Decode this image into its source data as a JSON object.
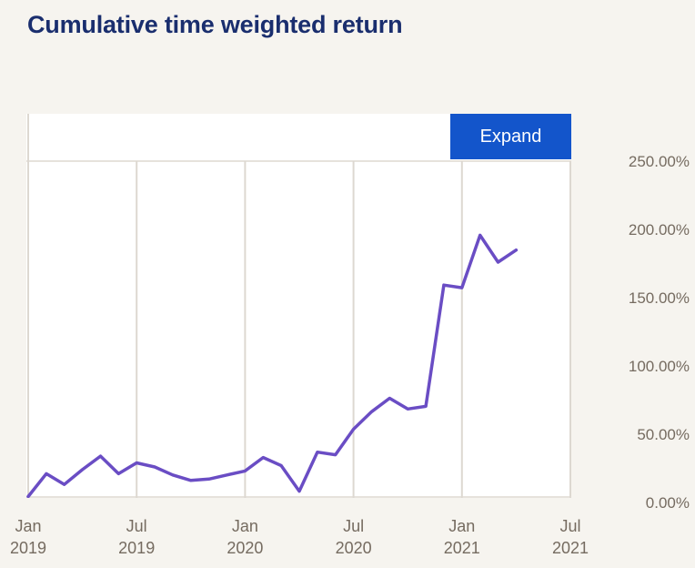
{
  "title": "Cumulative time weighted return",
  "expand_button": "Expand",
  "colors": {
    "background": "#f6f4ef",
    "title_text": "#1a2e6e",
    "plot_background": "#ffffff",
    "gridline": "#ddd8d1",
    "axis_text": "#756b60",
    "line": "#6a4dc4",
    "button_background": "#1355cb",
    "button_text": "#ffffff"
  },
  "chart_data": {
    "type": "line",
    "title": "Cumulative time weighted return",
    "x": [
      "Jan 2019",
      "Feb 2019",
      "Mar 2019",
      "Apr 2019",
      "May 2019",
      "Jun 2019",
      "Jul 2019",
      "Aug 2019",
      "Sep 2019",
      "Oct 2019",
      "Nov 2019",
      "Dec 2019",
      "Jan 2020",
      "Feb 2020",
      "Mar 2020",
      "Apr 2020",
      "May 2020",
      "Jun 2020",
      "Jul 2020",
      "Aug 2020",
      "Sep 2020",
      "Oct 2020",
      "Nov 2020",
      "Dec 2020",
      "Jan 2021",
      "Feb 2021",
      "Mar 2021",
      "Apr 2021"
    ],
    "series": [
      {
        "name": "Cumulative time weighted return (%)",
        "values": [
          1,
          18,
          10,
          21,
          31,
          18,
          26,
          23,
          17,
          13,
          14,
          17,
          20,
          30,
          24,
          5,
          34,
          32,
          51,
          64,
          74,
          66,
          68,
          158,
          156,
          195,
          175,
          184
        ]
      }
    ],
    "y_unit": "%",
    "ylim": [
      0,
      250
    ],
    "y_tick_labels": [
      "250.00%",
      "200.00%",
      "150.00%",
      "100.00%",
      "50.00%",
      "0.00%"
    ],
    "x_tick_labels": [
      [
        "Jan",
        "2019"
      ],
      [
        "Jul",
        "2019"
      ],
      [
        "Jan",
        "2020"
      ],
      [
        "Jul",
        "2020"
      ],
      [
        "Jan",
        "2021"
      ],
      [
        "Jul",
        "2021"
      ]
    ],
    "x_tick_month_indices": [
      0,
      6,
      12,
      18,
      24,
      30
    ],
    "grid": "vertical-only, plus top line at 250%",
    "legend": "none"
  }
}
